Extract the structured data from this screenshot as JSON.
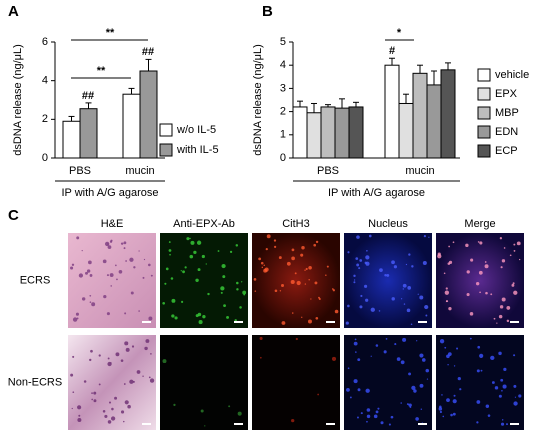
{
  "chart_data": [
    {
      "type": "bar",
      "panel_label": "A",
      "y_label": "dsDNA release (ng/μL)",
      "x_label": "IP with A/G agarose",
      "categories": [
        "PBS",
        "mucin"
      ],
      "ylim": [
        0,
        6
      ],
      "yticks": [
        0,
        2,
        4,
        6
      ],
      "series": [
        {
          "name": "w/o IL-5",
          "color": "#ffffff",
          "values": [
            1.9,
            3.3
          ],
          "errors": [
            0.25,
            0.3
          ]
        },
        {
          "name": "with IL-5",
          "color": "#999999",
          "values": [
            2.55,
            4.5
          ],
          "errors": [
            0.3,
            0.6
          ]
        }
      ],
      "annotations": [
        "**",
        "**",
        "##",
        "##"
      ]
    },
    {
      "type": "bar",
      "panel_label": "B",
      "y_label": "dsDNA release (ng/μL)",
      "x_label": "IP with A/G agarose",
      "categories": [
        "PBS",
        "mucin"
      ],
      "ylim": [
        0,
        5
      ],
      "yticks": [
        0,
        1,
        2,
        3,
        4,
        5
      ],
      "series": [
        {
          "name": "vehicle",
          "color": "#ffffff",
          "values": [
            2.2,
            4.0
          ],
          "errors": [
            0.25,
            0.3
          ]
        },
        {
          "name": "EPX",
          "color": "#e0e0e0",
          "values": [
            1.95,
            2.35
          ],
          "errors": [
            0.4,
            0.4
          ]
        },
        {
          "name": "MBP",
          "color": "#bdbdbd",
          "values": [
            2.2,
            3.65
          ],
          "errors": [
            0.1,
            0.35
          ]
        },
        {
          "name": "EDN",
          "color": "#999999",
          "values": [
            2.15,
            3.15
          ],
          "errors": [
            0.4,
            0.6
          ]
        },
        {
          "name": "ECP",
          "color": "#555555",
          "values": [
            2.2,
            3.8
          ],
          "errors": [
            0.2,
            0.3
          ]
        }
      ],
      "annotations": [
        "#",
        "*"
      ]
    }
  ],
  "panel_c": {
    "label": "C",
    "columns": [
      "H&E",
      "Anti-EPX-Ab",
      "CitH3",
      "Nucleus",
      "Merge"
    ],
    "rows": [
      "ECRS",
      "Non-ECRS"
    ]
  }
}
